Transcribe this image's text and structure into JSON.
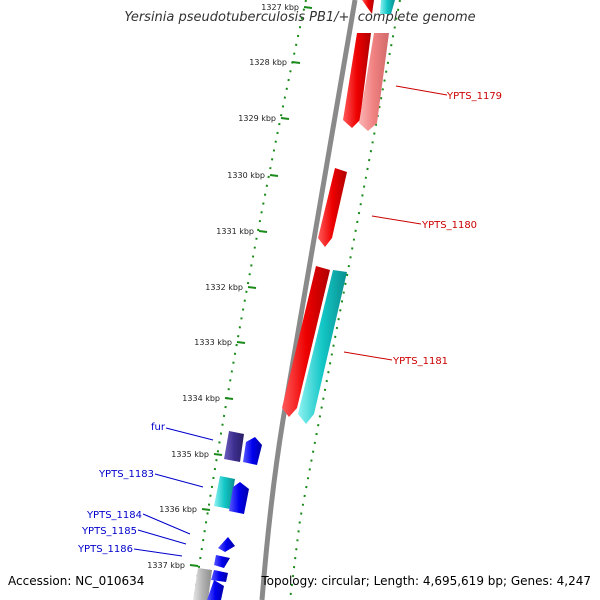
{
  "title": "Yersinia pseudotuberculosis PB1/+, complete genome",
  "accession": "Accession: NC_010634",
  "topology": "Topology: circular; Length: 4,695,619 bp; Genes: 4,247",
  "colors": {
    "backbone": "#8a8a8a",
    "tick_green": "#1a8a1a",
    "forward_red": "#ee0000",
    "light_red": "#f08080",
    "cyan": "#13c6c6",
    "blue": "#0000ee",
    "navy": "#3d2e8f",
    "gray": "#b3b3b3",
    "red_label": "#cc0000",
    "blue_label": "#0000cc"
  },
  "scale_labels": [
    "1327 kbp",
    "1328 kbp",
    "1329 kbp",
    "1330 kbp",
    "1331 kbp",
    "1332 kbp",
    "1333 kbp",
    "1334 kbp",
    "1335 kbp",
    "1336 kbp",
    "1337 kbp"
  ],
  "gene_labels_right": [
    "YPTS_1179",
    "YPTS_1180",
    "YPTS_1181"
  ],
  "gene_labels_left": [
    "fur",
    "YPTS_1183",
    "YPTS_1184",
    "YPTS_1185",
    "YPTS_1186"
  ]
}
